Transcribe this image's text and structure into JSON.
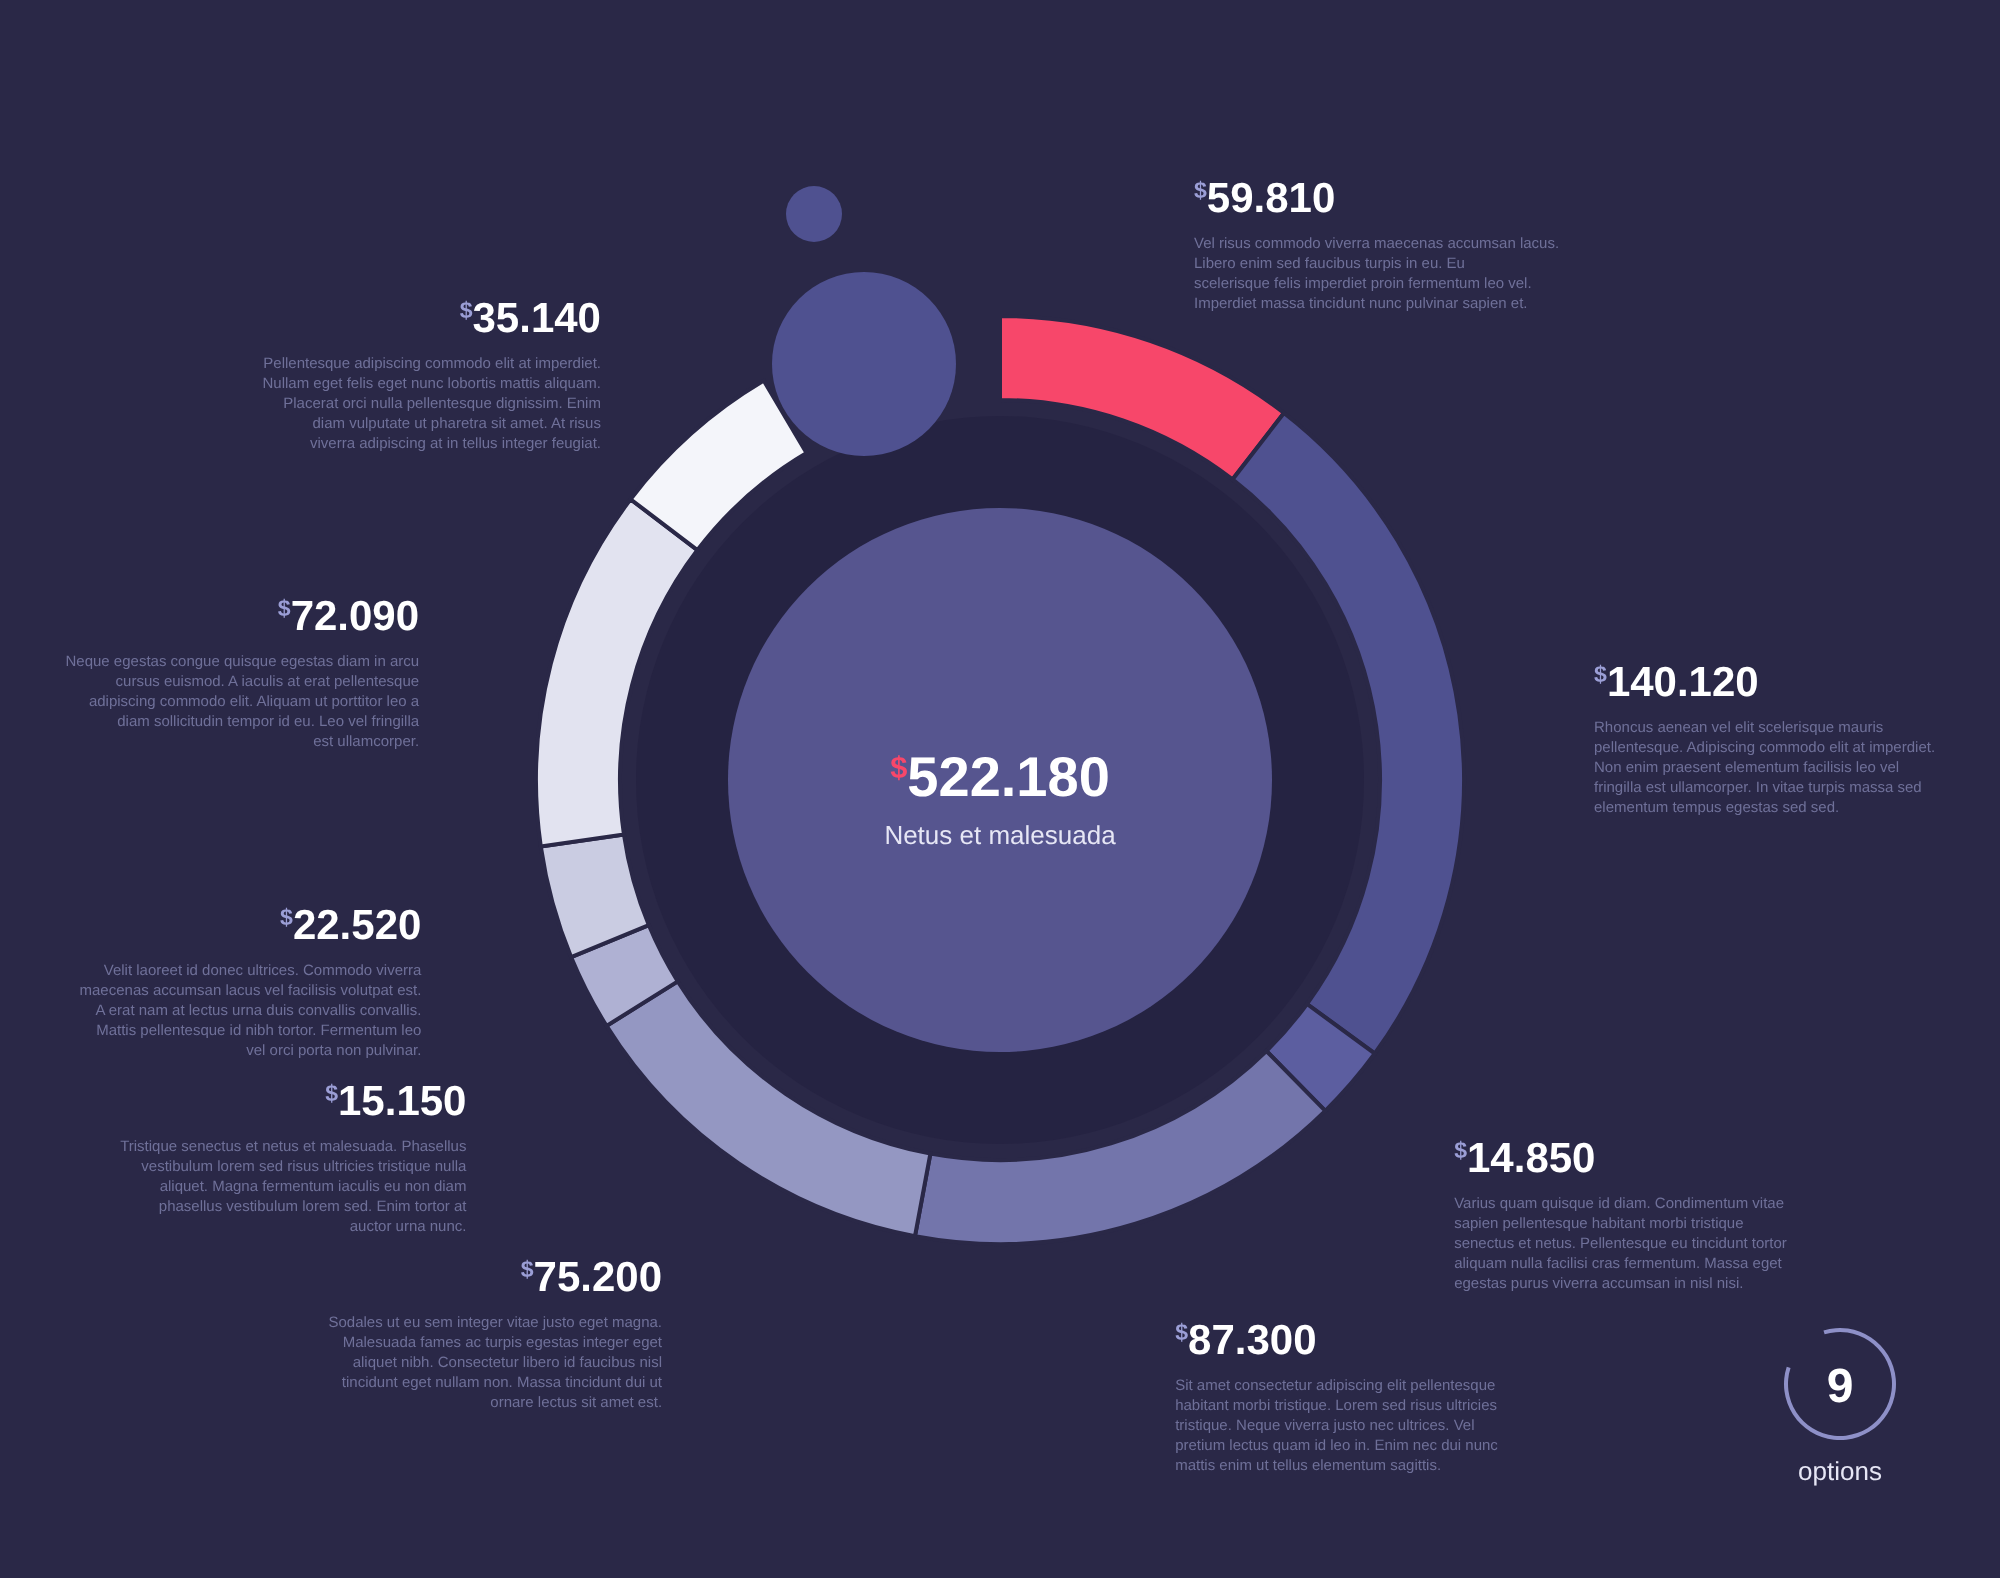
{
  "chart_data": {
    "type": "donut",
    "categories": [
      "Vel risus commodo viverra maecenas accumsan lacus. Libero enim sed faucibus turpis in eu. Eu scelerisque felis imperdiet proin fermentum leo vel. Imperdiet massa tincidunt nunc pulvinar sapien et.",
      "Rhoncus aenean vel elit scelerisque mauris pellentesque. Adipiscing commodo elit at imperdiet. Non enim praesent elementum facilisis leo vel fringilla est ullamcorper. In vitae turpis massa sed elementum tempus egestas sed sed.",
      "Varius quam quisque id diam. Condimentum vitae sapien pellentesque habitant morbi tristique senectus et netus. Pellentesque eu tincidunt tortor aliquam nulla facilisi cras fermentum. Massa eget egestas purus viverra accumsan in nisl nisi.",
      "Sit amet consectetur adipiscing elit pellentesque habitant morbi tristique. Lorem sed risus ultricies tristique. Neque viverra justo nec ultrices. Vel pretium lectus quam id leo in. Enim nec dui nunc mattis enim ut tellus elementum sagittis.",
      "Sodales ut eu sem integer vitae justo eget magna. Malesuada fames ac turpis egestas integer eget aliquet nibh. Consectetur libero id faucibus nisl tincidunt eget nullam non. Massa tincidunt dui ut ornare lectus sit amet est.",
      "Tristique senectus et netus et malesuada. Phasellus vestibulum lorem sed risus ultricies tristique nulla aliquet. Magna fermentum iaculis eu non diam phasellus vestibulum lorem sed. Enim tortor at auctor urna nunc.",
      "Velit laoreet id donec ultrices. Commodo viverra maecenas accumsan lacus vel facilisis volutpat est. A erat nam at lectus urna duis convallis convallis. Mattis pellentesque id nibh tortor. Fermentum leo vel orci porta non pulvinar.",
      "Neque egestas congue quisque egestas diam in arcu cursus euismod. A iaculis at erat pellentesque adipiscing commodo elit. Aliquam ut porttitor leo a diam sollicitudin tempor id eu. Leo vel fringilla est ullamcorper.",
      "Pellentesque adipiscing commodo elit at imperdiet. Nullam eget felis eget nunc lobortis mattis aliquam. Placerat orci nulla pellentesque dignissim. Enim diam vulputate ut pharetra sit amet. At risus viverra adipiscing at in tellus integer feugiat."
    ],
    "values": [
      59.81,
      140.12,
      14.85,
      87.3,
      75.2,
      15.15,
      22.52,
      72.09,
      35.14
    ],
    "value_labels": [
      "$^{$}$59.810",
      "$^{$}$140.120",
      "$^{$}$14.850",
      "$^{$}$87.300",
      "$^{$}$75.200",
      "$^{$}$15.150",
      "$^{$}$22.520",
      "$^{$}$72.090",
      "$^{$}$35.140"
    ],
    "colors": [
      "#f7476a",
      "#4f5190",
      "#5c5ea0",
      "#7375ab",
      "#9497c2",
      "#afb1d3",
      "#cacce2",
      "#e2e3f0",
      "#f4f5fa"
    ],
    "annotations": [
      "$^{$}$522.180",
      "Netus et malesuada",
      "9",
      "options"
    ]
  }
}
